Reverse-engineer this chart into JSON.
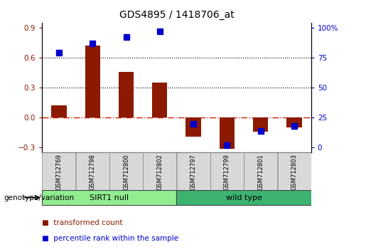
{
  "title": "GDS4895 / 1418706_at",
  "samples": [
    "GSM712769",
    "GSM712798",
    "GSM712800",
    "GSM712802",
    "GSM712797",
    "GSM712799",
    "GSM712801",
    "GSM712803"
  ],
  "transformed_count": [
    0.12,
    0.72,
    0.46,
    0.35,
    -0.19,
    -0.31,
    -0.14,
    -0.1
  ],
  "percentile_rank": [
    79,
    87,
    92,
    97,
    20,
    2,
    14,
    18
  ],
  "groups": [
    {
      "label": "SIRT1 null",
      "start": 0,
      "end": 4,
      "color": "#90ee90"
    },
    {
      "label": "wild type",
      "start": 4,
      "end": 8,
      "color": "#3cb371"
    }
  ],
  "group_label": "genotype/variation",
  "bar_color": "#8b1a00",
  "dot_color": "#0000cc",
  "ylim": [
    -0.35,
    0.95
  ],
  "yticks_left": [
    -0.3,
    0.0,
    0.3,
    0.6,
    0.9
  ],
  "yticks_right": [
    0,
    25,
    50,
    75,
    100
  ],
  "hlines": [
    0.3,
    0.6
  ],
  "zero_line_color": "#cc2200",
  "bar_width": 0.45,
  "dot_size": 28
}
